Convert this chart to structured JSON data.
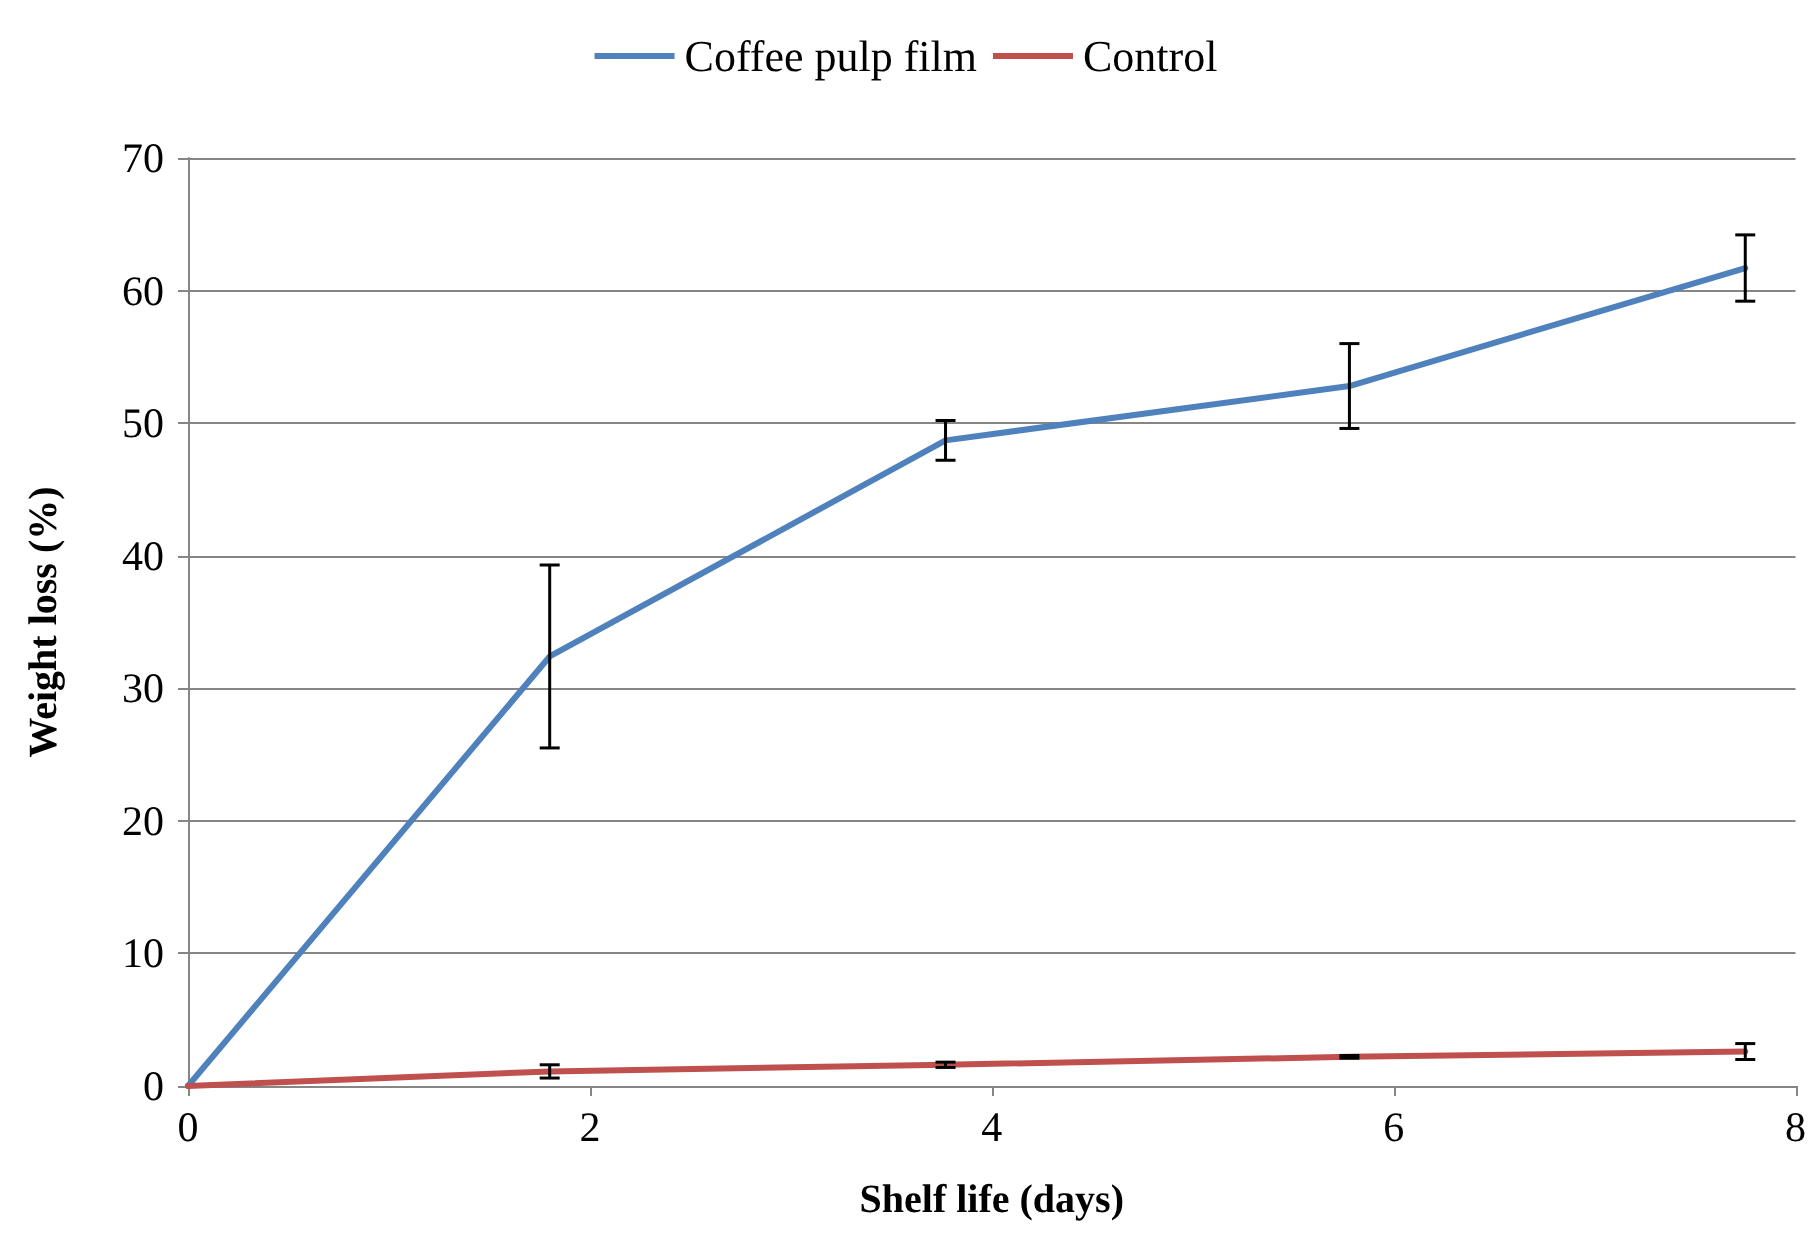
{
  "chart_data": {
    "type": "line",
    "xlabel": "Shelf life (days)",
    "ylabel": "Weight loss (%)",
    "x": [
      0,
      1.8,
      3.77,
      5.78,
      7.75
    ],
    "series": [
      {
        "name": "Coffee pulp film",
        "color": "#4f81bd",
        "values": [
          0,
          32.4,
          48.7,
          52.8,
          61.7
        ],
        "errors": [
          null,
          6.9,
          1.5,
          3.2,
          2.5
        ]
      },
      {
        "name": "Control",
        "color": "#c0504d",
        "values": [
          0,
          1.1,
          1.6,
          2.2,
          2.6
        ],
        "errors": [
          null,
          0.5,
          0.2,
          0.1,
          0.6
        ]
      }
    ],
    "xlim": [
      0,
      8
    ],
    "xticks": [
      0,
      2,
      4,
      6,
      8
    ],
    "ylim": [
      0,
      70
    ],
    "yticks": [
      0,
      10,
      20,
      30,
      40,
      50,
      60,
      70
    ],
    "grid": "y",
    "legend": "top",
    "marker": "none",
    "line_style": "solid"
  }
}
